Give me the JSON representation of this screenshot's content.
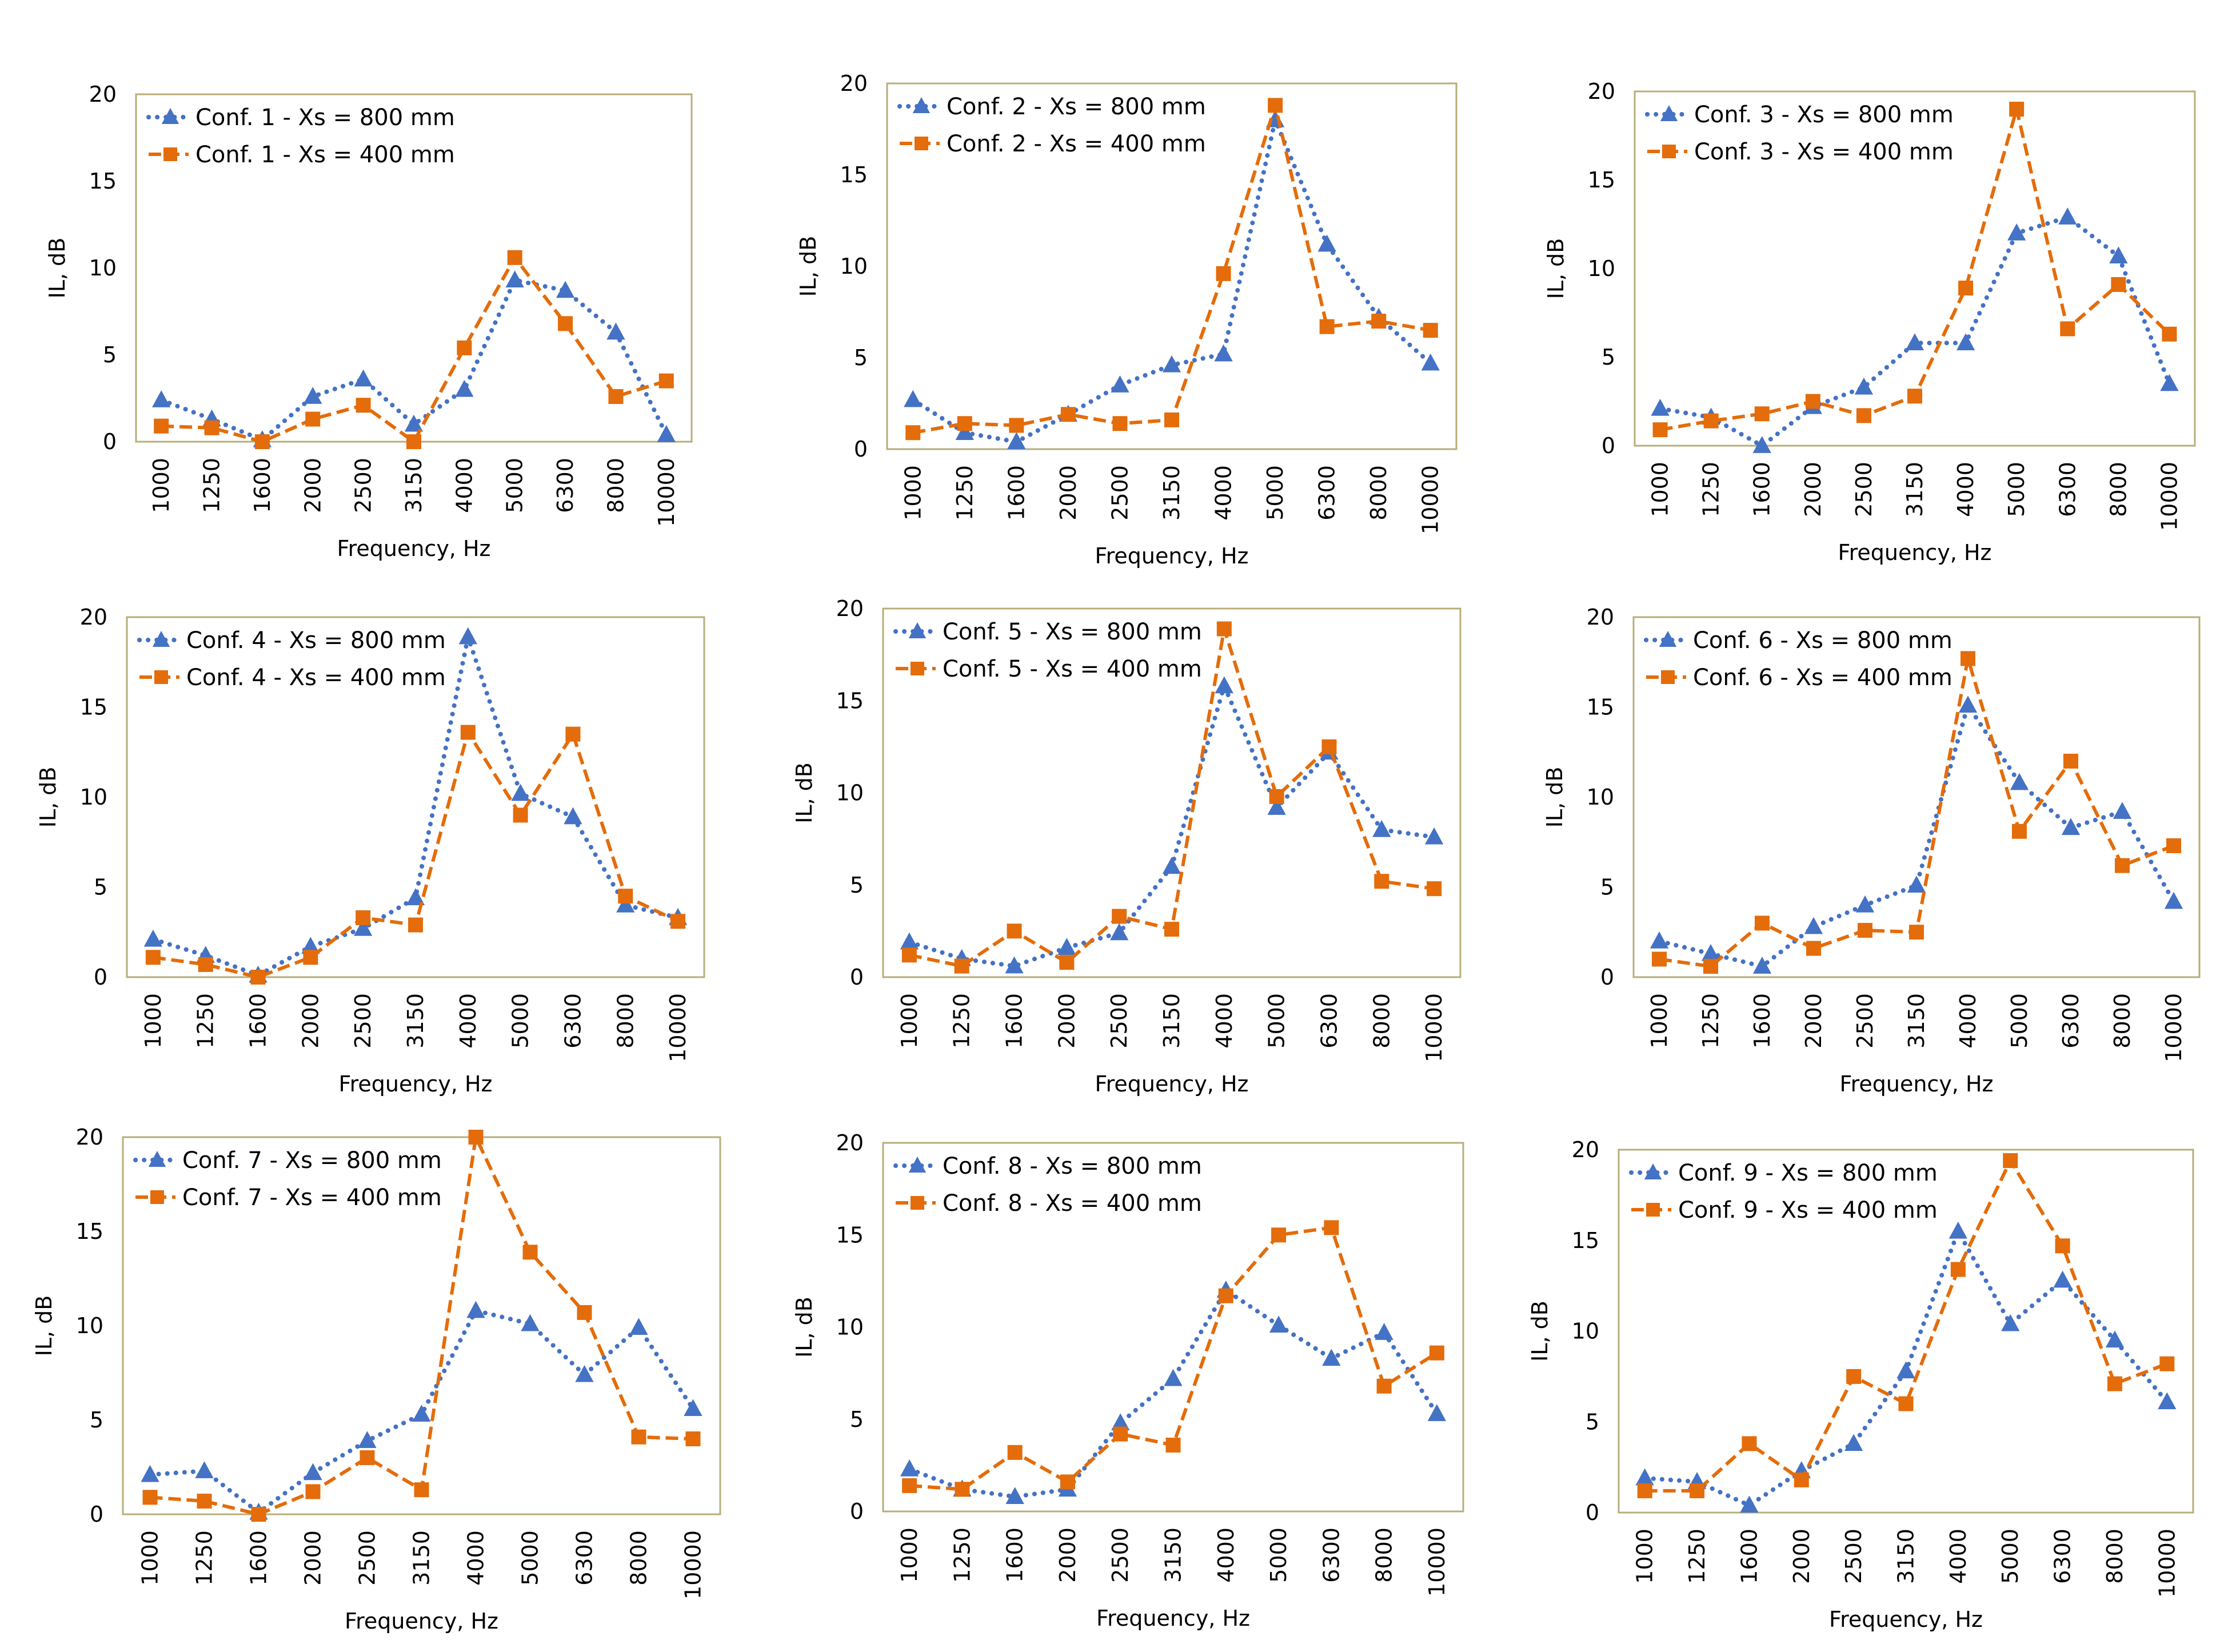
{
  "colors": {
    "series_800": "#4472C4",
    "series_400": "#E46C0A",
    "frame": "#B7AE7A",
    "text": "#000000"
  },
  "chart_data": [
    {
      "type": "line",
      "categories": [
        "1000",
        "1250",
        "1600",
        "2000",
        "2500",
        "3150",
        "4000",
        "5000",
        "6300",
        "8000",
        "10000"
      ],
      "series": [
        {
          "name": "Conf. 1 - Xs = 800 mm",
          "style": "dotted-triangle",
          "values": [
            2.4,
            1.3,
            0.1,
            2.6,
            3.6,
            1.0,
            3.0,
            9.3,
            8.7,
            6.3,
            0.4
          ]
        },
        {
          "name": "Conf. 1 - Xs = 400 mm",
          "style": "dashed-square",
          "values": [
            0.9,
            0.8,
            0.0,
            1.3,
            2.1,
            -0.3,
            5.4,
            10.6,
            6.8,
            2.6,
            3.5
          ]
        }
      ],
      "xlabel": "Frequency, Hz",
      "ylabel": "IL, dB",
      "ylim": [
        0,
        20
      ],
      "yticks": [
        0,
        5,
        10,
        15,
        20
      ],
      "legend": "top-left"
    },
    {
      "type": "line",
      "categories": [
        "1000",
        "1250",
        "1600",
        "2000",
        "2500",
        "3150",
        "4000",
        "5000",
        "6300",
        "8000",
        "10000"
      ],
      "series": [
        {
          "name": "Conf. 2 - Xs = 800 mm",
          "style": "dotted-triangle",
          "values": [
            2.7,
            0.9,
            0.4,
            1.9,
            3.5,
            4.6,
            5.2,
            18.0,
            11.2,
            7.2,
            4.7
          ]
        },
        {
          "name": "Conf. 2 - Xs = 400 mm",
          "style": "dashed-square",
          "values": [
            0.9,
            1.4,
            1.3,
            1.9,
            1.4,
            1.6,
            9.6,
            18.8,
            6.7,
            7.0,
            6.5
          ]
        }
      ],
      "xlabel": "Frequency, Hz",
      "ylabel": "IL, dB",
      "ylim": [
        0,
        20
      ],
      "yticks": [
        0,
        5,
        10,
        15,
        20
      ],
      "legend": "top-left"
    },
    {
      "type": "line",
      "categories": [
        "1000",
        "1250",
        "1600",
        "2000",
        "2500",
        "3150",
        "4000",
        "5000",
        "6300",
        "8000",
        "10000"
      ],
      "series": [
        {
          "name": "Conf. 3 - Xs = 800 mm",
          "style": "dotted-triangle",
          "values": [
            2.1,
            1.6,
            0.0,
            2.2,
            3.3,
            5.8,
            5.8,
            12.0,
            12.9,
            10.7,
            3.5
          ]
        },
        {
          "name": "Conf. 3 - Xs = 400 mm",
          "style": "dashed-square",
          "values": [
            0.9,
            1.4,
            1.8,
            2.5,
            1.7,
            2.8,
            8.9,
            19.0,
            6.6,
            9.1,
            6.3
          ]
        }
      ],
      "xlabel": "Frequency, Hz",
      "ylabel": "IL, dB",
      "ylim": [
        0,
        20
      ],
      "yticks": [
        0,
        5,
        10,
        15,
        20
      ],
      "legend": "top-left"
    },
    {
      "type": "line",
      "categories": [
        "1000",
        "1250",
        "1600",
        "2000",
        "2500",
        "3150",
        "4000",
        "5000",
        "6300",
        "8000",
        "10000"
      ],
      "series": [
        {
          "name": "Conf. 4 - Xs = 800 mm",
          "style": "dotted-triangle",
          "values": [
            2.1,
            1.2,
            0.1,
            1.7,
            2.7,
            4.4,
            18.9,
            10.2,
            8.9,
            4.0,
            3.3
          ]
        },
        {
          "name": "Conf. 4 - Xs = 400 mm",
          "style": "dashed-square",
          "values": [
            1.1,
            0.7,
            0.0,
            1.1,
            3.3,
            2.9,
            13.6,
            9.0,
            13.5,
            4.5,
            3.1
          ]
        }
      ],
      "xlabel": "Frequency, Hz",
      "ylabel": "IL, dB",
      "ylim": [
        0,
        20
      ],
      "yticks": [
        0,
        5,
        10,
        15,
        20
      ],
      "legend": "top-left"
    },
    {
      "type": "line",
      "categories": [
        "1000",
        "1250",
        "1600",
        "2000",
        "2500",
        "3150",
        "4000",
        "5000",
        "6300",
        "8000",
        "10000"
      ],
      "series": [
        {
          "name": "Conf. 5 - Xs = 800 mm",
          "style": "dotted-triangle",
          "values": [
            1.9,
            1.0,
            0.6,
            1.6,
            2.4,
            6.0,
            15.8,
            9.2,
            12.2,
            8.0,
            7.6
          ]
        },
        {
          "name": "Conf. 5 - Xs = 400 mm",
          "style": "dashed-square",
          "values": [
            1.2,
            0.6,
            2.5,
            0.8,
            3.3,
            2.6,
            18.9,
            9.8,
            12.5,
            5.2,
            4.8
          ]
        }
      ],
      "xlabel": "Frequency, Hz",
      "ylabel": "IL, dB",
      "ylim": [
        0,
        20
      ],
      "yticks": [
        0,
        5,
        10,
        15,
        20
      ],
      "legend": "top-left"
    },
    {
      "type": "line",
      "categories": [
        "1000",
        "1250",
        "1600",
        "2000",
        "2500",
        "3150",
        "4000",
        "5000",
        "6300",
        "8000",
        "10000"
      ],
      "series": [
        {
          "name": "Conf. 6 - Xs = 800 mm",
          "style": "dotted-triangle",
          "values": [
            2.0,
            1.3,
            0.6,
            2.8,
            4.0,
            5.1,
            15.1,
            10.8,
            8.3,
            9.2,
            4.2
          ]
        },
        {
          "name": "Conf. 6 - Xs = 400 mm",
          "style": "dashed-square",
          "values": [
            1.0,
            0.6,
            3.0,
            1.6,
            2.6,
            2.5,
            17.7,
            8.1,
            12.0,
            6.2,
            7.3
          ]
        }
      ],
      "xlabel": "Frequency, Hz",
      "ylabel": "IL, dB",
      "ylim": [
        0,
        20
      ],
      "yticks": [
        0,
        5,
        10,
        15,
        20
      ],
      "legend": "top-left"
    },
    {
      "type": "line",
      "categories": [
        "1000",
        "1250",
        "1600",
        "2000",
        "2500",
        "3150",
        "4000",
        "5000",
        "6300",
        "8000",
        "10000"
      ],
      "series": [
        {
          "name": "Conf. 7 - Xs = 800 mm",
          "style": "dotted-triangle",
          "values": [
            2.1,
            2.3,
            0.1,
            2.2,
            3.9,
            5.3,
            10.8,
            10.1,
            7.4,
            9.9,
            5.6
          ]
        },
        {
          "name": "Conf. 7 - Xs = 400 mm",
          "style": "dashed-square",
          "values": [
            0.9,
            0.7,
            0.0,
            1.2,
            3.0,
            1.3,
            20.0,
            13.9,
            10.7,
            4.1,
            4.0
          ]
        }
      ],
      "xlabel": "Frequency, Hz",
      "ylabel": "IL, dB",
      "ylim": [
        0,
        20
      ],
      "yticks": [
        0,
        5,
        10,
        15,
        20
      ],
      "legend": "top-left"
    },
    {
      "type": "line",
      "categories": [
        "1000",
        "1250",
        "1600",
        "2000",
        "2500",
        "3150",
        "4000",
        "5000",
        "6300",
        "8000",
        "10000"
      ],
      "series": [
        {
          "name": "Conf. 8 - Xs = 800 mm",
          "style": "dotted-triangle",
          "values": [
            2.3,
            1.2,
            0.8,
            1.2,
            4.8,
            7.2,
            12.0,
            10.1,
            8.3,
            9.7,
            5.3
          ]
        },
        {
          "name": "Conf. 8 - Xs = 400 mm",
          "style": "dashed-square",
          "values": [
            1.4,
            1.2,
            3.2,
            1.6,
            4.2,
            3.6,
            11.7,
            15.0,
            15.4,
            6.8,
            8.6
          ]
        }
      ],
      "xlabel": "Frequency, Hz",
      "ylabel": "IL, dB",
      "ylim": [
        0,
        20
      ],
      "yticks": [
        0,
        5,
        10,
        15,
        20
      ],
      "legend": "top-left"
    },
    {
      "type": "line",
      "categories": [
        "1000",
        "1250",
        "1600",
        "2000",
        "2500",
        "3150",
        "4000",
        "5000",
        "6300",
        "8000",
        "10000"
      ],
      "series": [
        {
          "name": "Conf. 9 - Xs = 800 mm",
          "style": "dotted-triangle",
          "values": [
            1.9,
            1.7,
            0.4,
            2.3,
            3.8,
            7.8,
            15.5,
            10.4,
            12.8,
            9.5,
            6.1
          ]
        },
        {
          "name": "Conf. 9 - Xs = 400 mm",
          "style": "dashed-square",
          "values": [
            1.2,
            1.2,
            3.8,
            1.8,
            7.5,
            6.0,
            13.4,
            19.4,
            14.7,
            7.1,
            8.2
          ]
        }
      ],
      "xlabel": "Frequency, Hz",
      "ylabel": "IL, dB",
      "ylim": [
        0,
        20
      ],
      "yticks": [
        0,
        5,
        10,
        15,
        20
      ],
      "legend": "top-left"
    }
  ]
}
